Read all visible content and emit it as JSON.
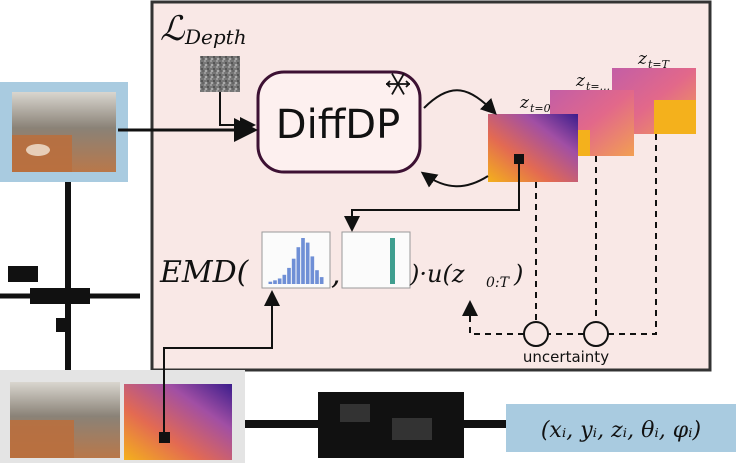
{
  "loss_title": "ℒ",
  "loss_sub": "Depth",
  "model_name": "DiffDP",
  "frozen_icon": "snowflake-icon",
  "steps": [
    {
      "label": "z",
      "sub": "t=0"
    },
    {
      "label": "z",
      "sub": "t=..."
    },
    {
      "label": "z",
      "sub": "t=T"
    }
  ],
  "emd": {
    "prefix": "EMD(",
    "comma": ",",
    "suffix": ")·u(z",
    "suffix_sub": "0:T",
    "close": ")"
  },
  "uncertainty_label": "uncertainty",
  "pose": "(xᵢ, yᵢ, zᵢ, θᵢ, φᵢ)",
  "histogram_a_bars": [
    0.05,
    0.08,
    0.12,
    0.2,
    0.35,
    0.55,
    0.8,
    1.0,
    0.9,
    0.6,
    0.3,
    0.15
  ],
  "histogram_b_bar": 1.0,
  "colors": {
    "panel_fill": "#f9e8e6",
    "panel_border": "#333333",
    "model_border": "#3d1133",
    "pose_fill": "#a9cbe0",
    "hist_a": "#6f8fd6",
    "hist_b": "#3f9e8f"
  }
}
